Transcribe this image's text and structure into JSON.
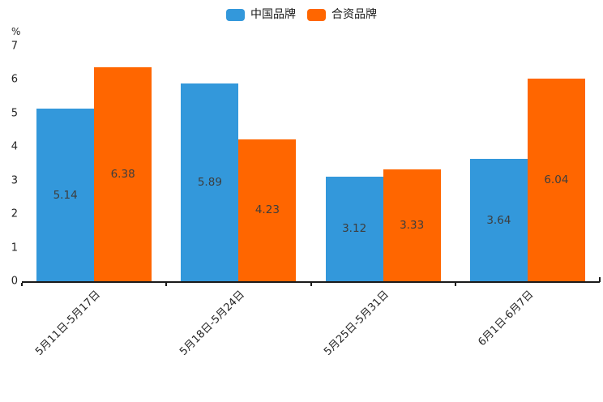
{
  "chart_data": {
    "type": "bar",
    "title": "",
    "unit_label": "%",
    "categories": [
      "5月11日-5月17日",
      "5月18日-5月24日",
      "5月25日-5月31日",
      "6月1日-6月7日"
    ],
    "series": [
      {
        "name": "中国品牌",
        "color": "#3398db",
        "values": [
          5.14,
          5.89,
          3.12,
          3.64
        ]
      },
      {
        "name": "合资品牌",
        "color": "#ff6600",
        "values": [
          6.38,
          4.23,
          3.33,
          6.04
        ]
      }
    ],
    "value_labels": [
      "5.14",
      "6.38",
      "5.89",
      "4.23",
      "3.12",
      "3.33",
      "3.64",
      "6.04"
    ],
    "ylabel": "%",
    "ylim": [
      0,
      7
    ],
    "yticks": [
      "0",
      "1",
      "2",
      "3",
      "4",
      "5",
      "6",
      "7"
    ],
    "grid": false,
    "legend_position": "top-center",
    "value_label_position": "inside-center",
    "xlabel_rotation_deg": 45
  }
}
